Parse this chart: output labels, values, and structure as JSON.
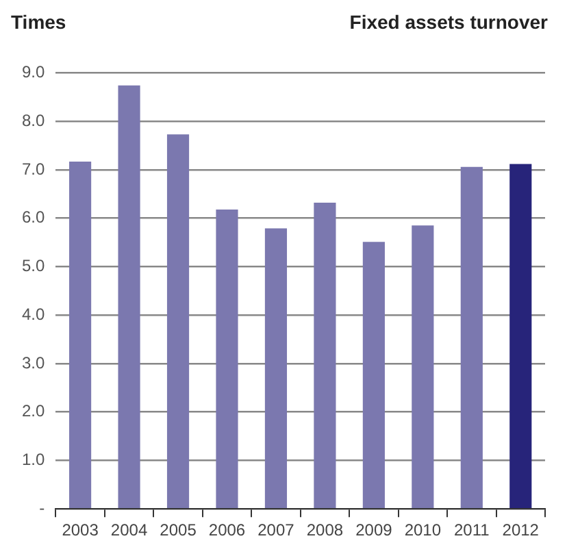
{
  "chart_data": {
    "type": "bar",
    "title": "Fixed assets turnover",
    "ylabel": "Times",
    "categories": [
      "2003",
      "2004",
      "2005",
      "2006",
      "2007",
      "2008",
      "2009",
      "2010",
      "2011",
      "2012"
    ],
    "values": [
      7.17,
      8.74,
      7.73,
      6.18,
      5.79,
      6.32,
      5.51,
      5.85,
      7.06,
      7.12
    ],
    "colors": [
      "#7b78af",
      "#7b78af",
      "#7b78af",
      "#7b78af",
      "#7b78af",
      "#7b78af",
      "#7b78af",
      "#7b78af",
      "#7b78af",
      "#27247a"
    ],
    "ylim": [
      0,
      9
    ],
    "yticks": [
      {
        "value": 0,
        "label": "-"
      },
      {
        "value": 1,
        "label": "1.0"
      },
      {
        "value": 2,
        "label": "2.0"
      },
      {
        "value": 3,
        "label": "3.0"
      },
      {
        "value": 4,
        "label": "4.0"
      },
      {
        "value": 5,
        "label": "5.0"
      },
      {
        "value": 6,
        "label": "6.0"
      },
      {
        "value": 7,
        "label": "7.0"
      },
      {
        "value": 8,
        "label": "8.0"
      },
      {
        "value": 9,
        "label": "9.0"
      }
    ],
    "grid": "y",
    "legend": false
  }
}
